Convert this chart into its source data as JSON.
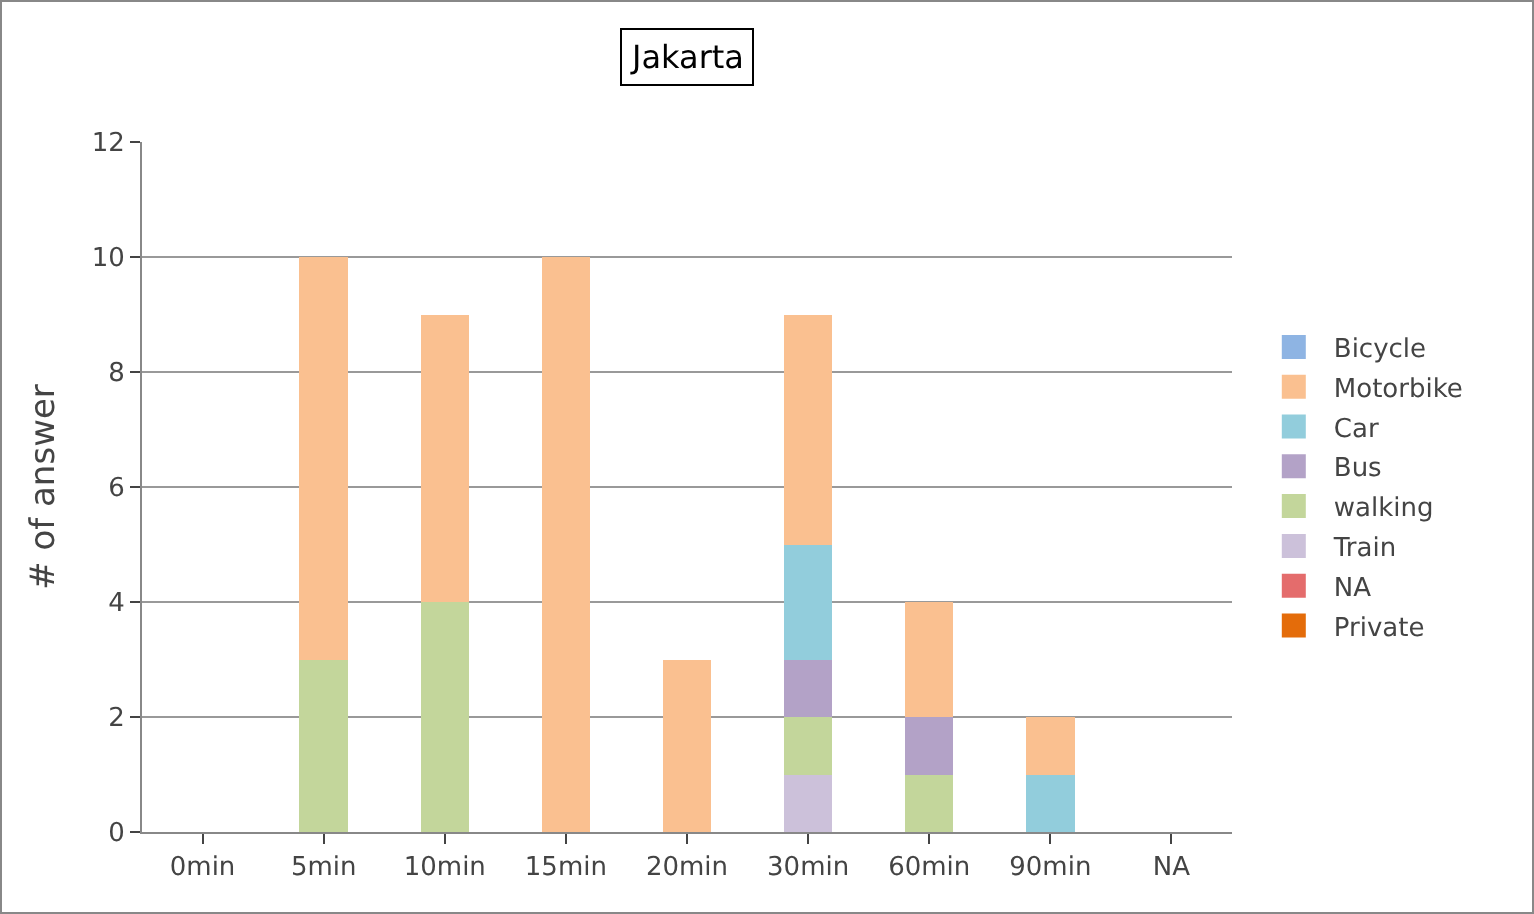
{
  "chart_data": {
    "type": "bar",
    "title": "Jakarta",
    "ylabel": "# of answer",
    "categories": [
      "0min",
      "5min",
      "10min",
      "15min",
      "20min",
      "30min",
      "60min",
      "90min",
      "NA"
    ],
    "stacked": true,
    "series": [
      {
        "name": "Private",
        "color": "#e46c0a",
        "values": [
          null,
          null,
          null,
          null,
          null,
          null,
          null,
          null,
          null
        ]
      },
      {
        "name": "NA",
        "color": "#e46c6c",
        "values": [
          null,
          null,
          null,
          null,
          null,
          null,
          null,
          null,
          null
        ]
      },
      {
        "name": "Train",
        "color": "#ccc1da",
        "values": [
          null,
          null,
          null,
          null,
          null,
          1,
          null,
          null,
          null
        ]
      },
      {
        "name": "walking",
        "color": "#c3d69b",
        "values": [
          null,
          3,
          4,
          null,
          null,
          1,
          1,
          null,
          null
        ]
      },
      {
        "name": "Bus",
        "color": "#b3a2c7",
        "values": [
          null,
          null,
          null,
          null,
          null,
          1,
          1,
          null,
          null
        ]
      },
      {
        "name": "Car",
        "color": "#92cddc",
        "values": [
          null,
          null,
          null,
          null,
          null,
          2,
          null,
          1,
          null
        ]
      },
      {
        "name": "Motorbike",
        "color": "#fac090",
        "values": [
          null,
          7,
          5,
          10,
          3,
          4,
          2,
          1,
          null
        ]
      },
      {
        "name": "Bicycle",
        "color": "#8eb4e3",
        "values": [
          null,
          null,
          null,
          null,
          null,
          null,
          null,
          null,
          null
        ]
      }
    ],
    "ylim": [
      0,
      12
    ],
    "yticks": [
      0,
      2,
      4,
      6,
      8,
      10,
      12
    ],
    "grid": "y",
    "legend": "right"
  }
}
